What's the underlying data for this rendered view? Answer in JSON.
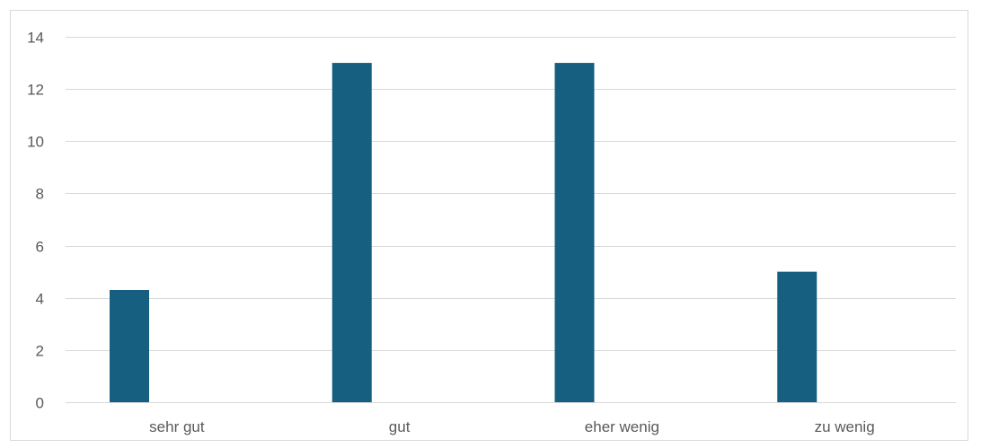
{
  "chart_data": {
    "type": "bar",
    "categories": [
      "sehr gut",
      "gut",
      "eher wenig",
      "zu wenig"
    ],
    "series": [
      {
        "values": [
          4.3,
          13,
          13,
          5
        ]
      }
    ],
    "title": "",
    "xlabel": "",
    "ylabel": "",
    "ylim": [
      0,
      14
    ],
    "yticks": [
      0,
      2,
      4,
      6,
      8,
      10,
      12,
      14
    ],
    "grid": true,
    "legend": "none",
    "colors": {
      "bar": "#175f80",
      "grid": "#d9d9d9",
      "axis": "#d9d9d9",
      "text": "#595959"
    }
  }
}
